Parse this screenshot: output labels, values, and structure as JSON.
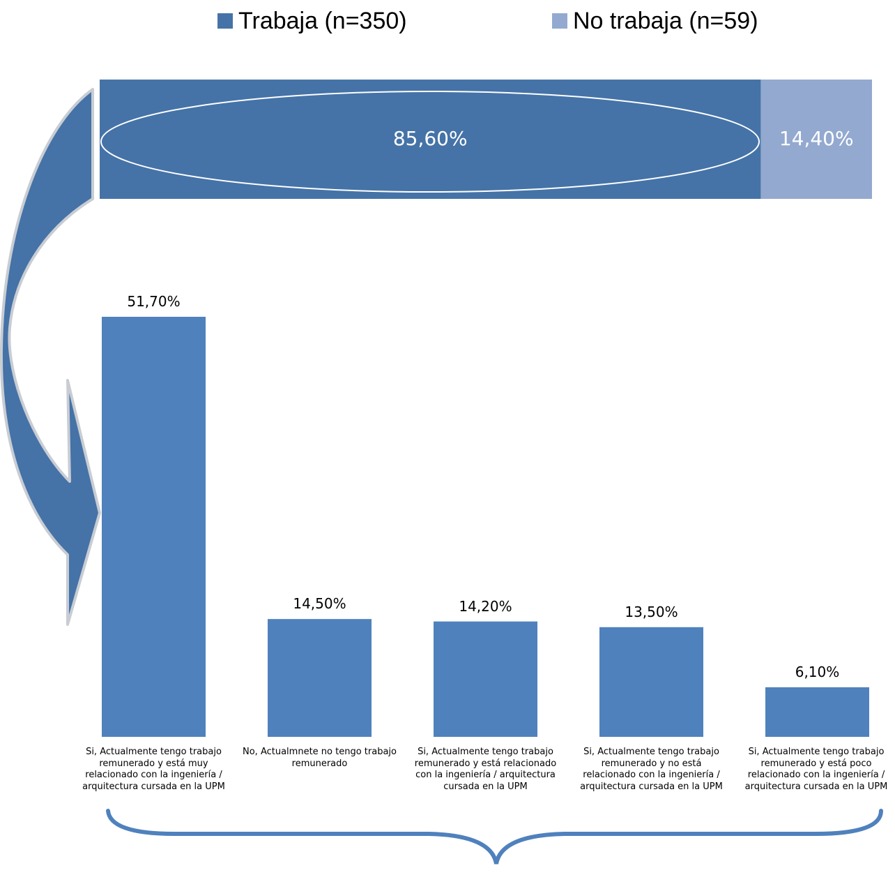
{
  "colors": {
    "trabaja": "#4573A7",
    "no_trabaja": "#93A9CF",
    "bars": "#4F81BD",
    "arrow": "#4572A7",
    "brace": "#4F81BD"
  },
  "legend": {
    "trabaja": "Trabaja (n=350)",
    "no_trabaja": "No trabaja (n=59)"
  },
  "chart_data": [
    {
      "type": "bar",
      "orientation": "horizontal-stacked",
      "series": [
        {
          "name": "Trabaja (n=350)",
          "values": [
            85.6
          ],
          "label": "85,60%"
        },
        {
          "name": "No trabaja (n=59)",
          "values": [
            14.4
          ],
          "label": "14,40%"
        }
      ],
      "xlim": [
        0,
        100
      ],
      "legend_position": "top"
    },
    {
      "type": "bar",
      "categories": [
        "Si, Actualmente tengo trabajo remunerado y está muy relacionado con la ingeniería / arquitectura cursada en la UPM",
        "No, Actualmnete no tengo trabajo remunerado",
        "Si, Actualmente tengo trabajo remunerado y está  relacionado con la ingeniería / arquitectura cursada en la UPM",
        "Si, Actualmente tengo trabajo remunerado y no está relacionado con la ingeniería / arquitectura cursada en la UPM",
        "Si, Actualmente tengo trabajo remunerado y está  poco relacionado con la ingeniería / arquitectura cursada en la UPM"
      ],
      "values": [
        51.7,
        14.5,
        14.2,
        13.5,
        6.1
      ],
      "value_labels": [
        "51,70%",
        "14,50%",
        "14,20%",
        "13,50%",
        "6,10%"
      ],
      "ylim": [
        0,
        60
      ],
      "grid": false
    }
  ]
}
